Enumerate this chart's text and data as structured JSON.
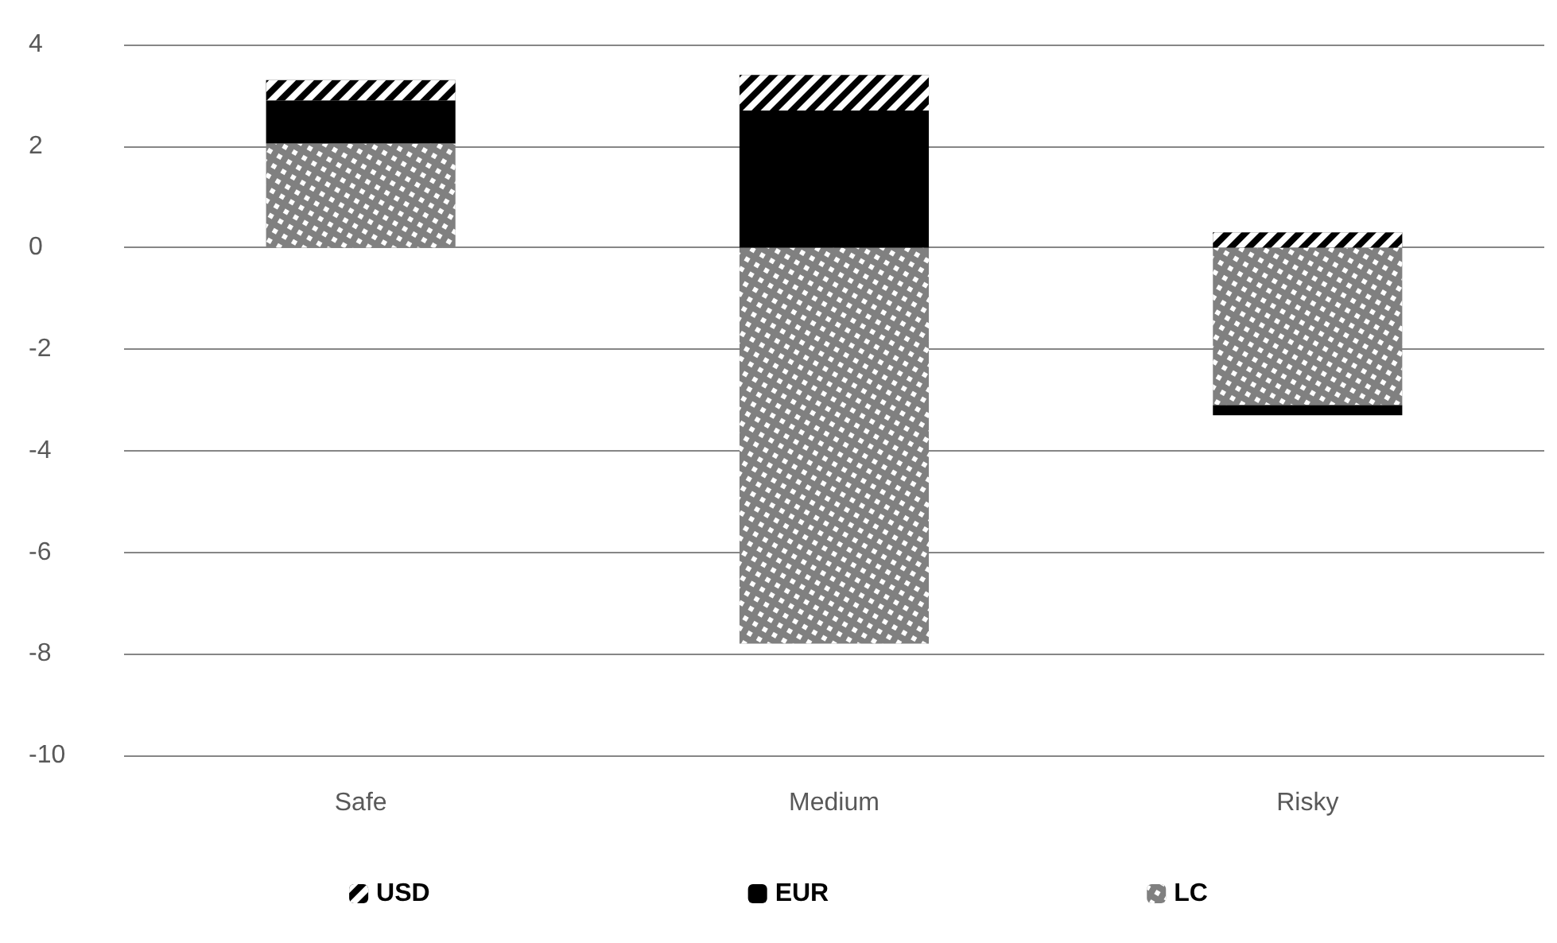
{
  "chart_data": {
    "type": "bar",
    "stacked": true,
    "categories": [
      "Safe",
      "Medium",
      "Risky"
    ],
    "series": [
      {
        "name": "USD",
        "color": "#000000",
        "values": [
          0.4,
          0.7,
          0.3
        ]
      },
      {
        "name": "EUR",
        "color": "#000000",
        "values": [
          0.85,
          2.7,
          -0.2
        ]
      },
      {
        "name": "LC",
        "color": "#808080",
        "values": [
          2.05,
          -7.8,
          -3.1
        ]
      }
    ],
    "ylim": [
      -10,
      4
    ],
    "yticks": [
      -10,
      -8,
      -6,
      -4,
      -2,
      0,
      2,
      4
    ],
    "grid": "y",
    "legend": "bottom"
  }
}
